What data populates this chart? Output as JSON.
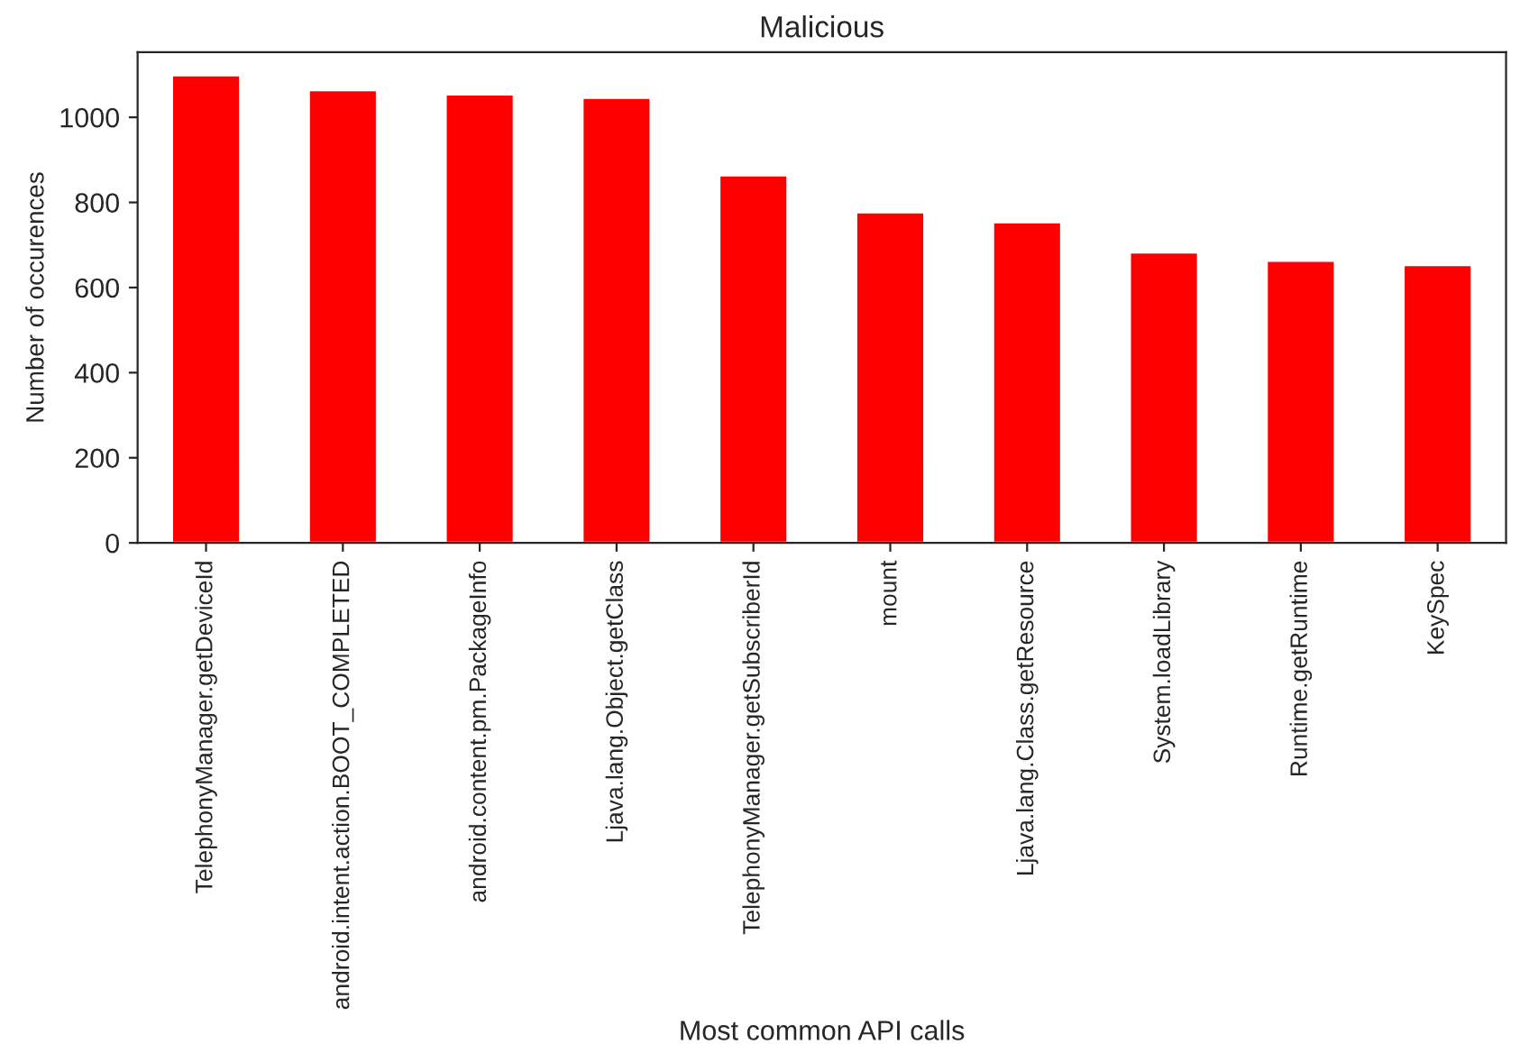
{
  "chart_data": {
    "type": "bar",
    "title": "Malicious",
    "xlabel": "Most common API calls",
    "ylabel": "Number of occurences",
    "categories": [
      "TelephonyManager.getDeviceId",
      "android.intent.action.BOOT_COMPLETED",
      "android.content.pm.PackageInfo",
      "Ljava.lang.Object.getClass",
      "TelephonyManager.getSubscriberId",
      "mount",
      "Ljava.lang.Class.getResource",
      "System.loadLibrary",
      "Runtime.getRuntime",
      "KeySpec"
    ],
    "values": [
      1099,
      1064,
      1054,
      1046,
      864,
      777,
      754,
      683,
      663,
      653
    ],
    "color": "#ff0000",
    "ylim": [
      0,
      1153
    ],
    "yticks": [
      0,
      200,
      400,
      600,
      800,
      1000
    ],
    "grid": false,
    "legend": false
  }
}
